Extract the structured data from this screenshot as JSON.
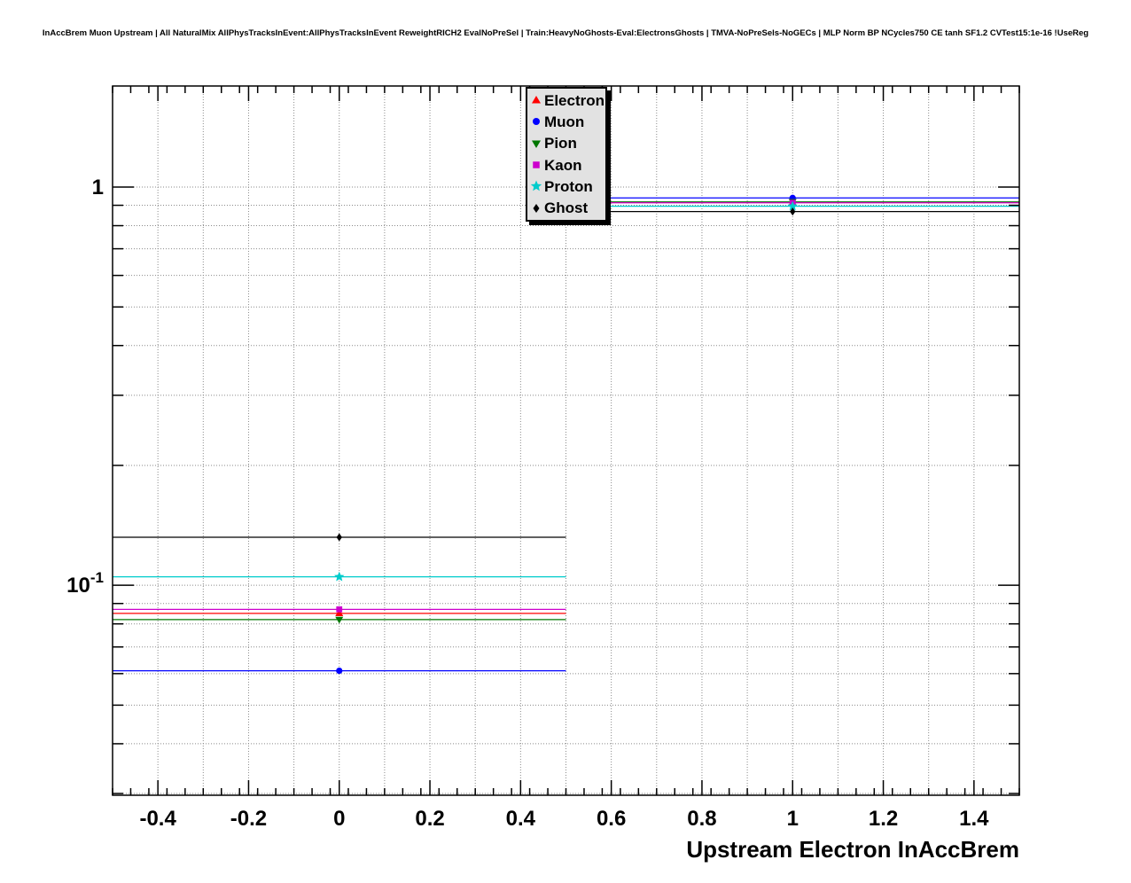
{
  "chart_data": {
    "type": "scatter",
    "title": "InAccBrem Muon Upstream | All NaturalMix AllPhysTracksInEvent:AllPhysTracksInEvent ReweightRICH2 EvalNoPreSel | Train:HeavyNoGhosts-Eval:ElectronsGhosts | TMVA-NoPreSels-NoGECs | MLP Norm BP NCycles750 CE tanh SF1.2 CVTest15:1e-16 !UseReg",
    "xlabel": "Upstream Electron InAccBrem",
    "ylabel": "",
    "x_scale": "linear",
    "y_scale": "log",
    "xlim": [
      -0.5,
      1.5
    ],
    "ylim": [
      0.0297,
      1.794
    ],
    "grid": true,
    "x_ticks": {
      "major_values": [
        -0.4,
        -0.2,
        0,
        0.2,
        0.4,
        0.6,
        0.8,
        1,
        1.2,
        1.4
      ],
      "major_labels": [
        "-0.4",
        "-0.2",
        "0",
        "0.2",
        "0.4",
        "0.6",
        "0.8",
        "1",
        "1.2",
        "1.4"
      ],
      "minor_step": 0.04,
      "grid_step": 0.1
    },
    "y_ticks": {
      "major": [
        {
          "value": 1,
          "label": "1"
        },
        {
          "value": 0.1,
          "label": "10",
          "exponent": "-1"
        }
      ]
    },
    "legend": {
      "position": "top-center"
    },
    "series": [
      {
        "name": "Electron",
        "color": "#ff0000",
        "marker": "triangle-up",
        "points": [
          {
            "x": 0,
            "y": 0.085,
            "xerr": 0.5
          },
          {
            "x": 1,
            "y": 0.915,
            "xerr": 0.5
          }
        ]
      },
      {
        "name": "Muon",
        "color": "#0000ff",
        "marker": "circle",
        "points": [
          {
            "x": 0,
            "y": 0.061,
            "xerr": 0.5
          },
          {
            "x": 1,
            "y": 0.939,
            "xerr": 0.5
          }
        ]
      },
      {
        "name": "Pion",
        "color": "#007700",
        "marker": "triangle-down",
        "points": [
          {
            "x": 0,
            "y": 0.082,
            "xerr": 0.5
          },
          {
            "x": 1,
            "y": 0.918,
            "xerr": 0.5
          }
        ]
      },
      {
        "name": "Kaon",
        "color": "#cc00cc",
        "marker": "square",
        "points": [
          {
            "x": 0,
            "y": 0.087,
            "xerr": 0.5
          },
          {
            "x": 1,
            "y": 0.913,
            "xerr": 0.5
          }
        ]
      },
      {
        "name": "Proton",
        "color": "#00cccc",
        "marker": "star",
        "points": [
          {
            "x": 0,
            "y": 0.105,
            "xerr": 0.5
          },
          {
            "x": 1,
            "y": 0.895,
            "xerr": 0.5
          }
        ]
      },
      {
        "name": "Ghost",
        "color": "#000000",
        "marker": "diamond",
        "points": [
          {
            "x": 0,
            "y": 0.132,
            "xerr": 0.5
          },
          {
            "x": 1,
            "y": 0.868,
            "xerr": 0.5
          }
        ]
      }
    ]
  }
}
